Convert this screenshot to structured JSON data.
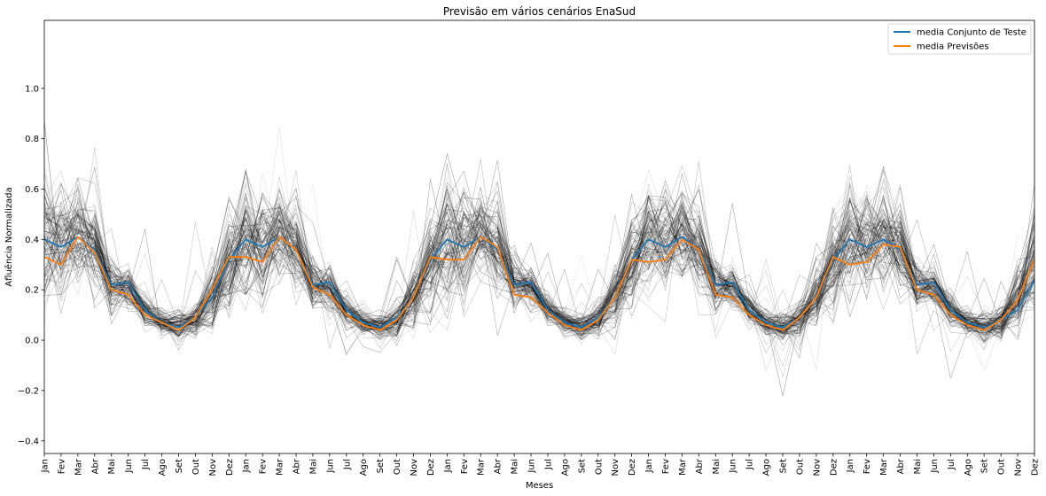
{
  "chart_data": {
    "type": "line",
    "title": "Previsão em vários cenários EnaSud",
    "xlabel": "Meses",
    "ylabel": "Afluência Normalizada",
    "ylim": [
      -0.45,
      1.27
    ],
    "yticks": [
      -0.4,
      -0.2,
      0.0,
      0.2,
      0.4,
      0.6,
      0.8,
      1.0
    ],
    "ytick_labels": [
      "−0.4",
      "−0.2",
      "0.0",
      "0.2",
      "0.4",
      "0.6",
      "0.8",
      "1.0"
    ],
    "x_ticks": [
      "Jan",
      "Fev",
      "Mar",
      "Abr",
      "Mai",
      "Jun",
      "Jul",
      "Ago",
      "Set",
      "Out",
      "Nov",
      "Dez",
      "Jan",
      "Fev",
      "Mar",
      "Abr",
      "Mai",
      "Jun",
      "Jul",
      "Ago",
      "Set",
      "Out",
      "Nov",
      "Dez",
      "Jan",
      "Fev",
      "Mar",
      "Abr",
      "Mai",
      "Jun",
      "Jul",
      "Ago",
      "Set",
      "Out",
      "Nov",
      "Dez",
      "Jan",
      "Fev",
      "Mar",
      "Abr",
      "Mai",
      "Jun",
      "Jul",
      "Ago",
      "Set",
      "Out",
      "Nov",
      "Dez",
      "Jan",
      "Fev",
      "Mar",
      "Abr",
      "Mai",
      "Jun",
      "Jul",
      "Ago",
      "Set",
      "Out",
      "Nov",
      "Dez"
    ],
    "legend_position": "top-right",
    "grid": false,
    "colors": {
      "test_mean": "#1f77b4",
      "forecast_mean": "#ff7f0e",
      "scenarios": "#000000"
    },
    "scenario_profile": [
      0.4,
      0.38,
      0.42,
      0.37,
      0.22,
      0.21,
      0.12,
      0.07,
      0.05,
      0.08,
      0.17,
      0.3
    ],
    "scenario_spread": [
      0.12,
      0.1,
      0.09,
      0.09,
      0.05,
      0.04,
      0.03,
      0.025,
      0.03,
      0.035,
      0.06,
      0.09
    ],
    "scenario_count": 110,
    "series": [
      {
        "name": "media Conjunto de Teste",
        "values": [
          0.4,
          0.37,
          0.41,
          0.36,
          0.22,
          0.23,
          0.12,
          0.07,
          0.05,
          0.09,
          0.17,
          0.32,
          0.4,
          0.37,
          0.41,
          0.36,
          0.22,
          0.23,
          0.12,
          0.07,
          0.05,
          0.09,
          0.17,
          0.32,
          0.4,
          0.37,
          0.41,
          0.36,
          0.22,
          0.23,
          0.12,
          0.07,
          0.05,
          0.09,
          0.17,
          0.32,
          0.4,
          0.37,
          0.41,
          0.36,
          0.22,
          0.23,
          0.12,
          0.07,
          0.05,
          0.09,
          0.17,
          0.32,
          0.4,
          0.37,
          0.4,
          0.36,
          0.22,
          0.23,
          0.12,
          0.07,
          0.05,
          0.08,
          0.12,
          0.24
        ]
      },
      {
        "name": "media Previsões",
        "values": [
          0.33,
          0.3,
          0.41,
          0.35,
          0.2,
          0.18,
          0.1,
          0.07,
          0.04,
          0.09,
          0.2,
          0.33,
          0.33,
          0.31,
          0.41,
          0.36,
          0.21,
          0.18,
          0.1,
          0.06,
          0.04,
          0.08,
          0.17,
          0.33,
          0.32,
          0.32,
          0.41,
          0.37,
          0.18,
          0.17,
          0.11,
          0.06,
          0.04,
          0.08,
          0.17,
          0.32,
          0.31,
          0.32,
          0.4,
          0.36,
          0.18,
          0.17,
          0.1,
          0.06,
          0.04,
          0.09,
          0.17,
          0.33,
          0.3,
          0.31,
          0.38,
          0.37,
          0.2,
          0.18,
          0.1,
          0.06,
          0.04,
          0.08,
          0.16,
          0.32
        ]
      }
    ]
  }
}
